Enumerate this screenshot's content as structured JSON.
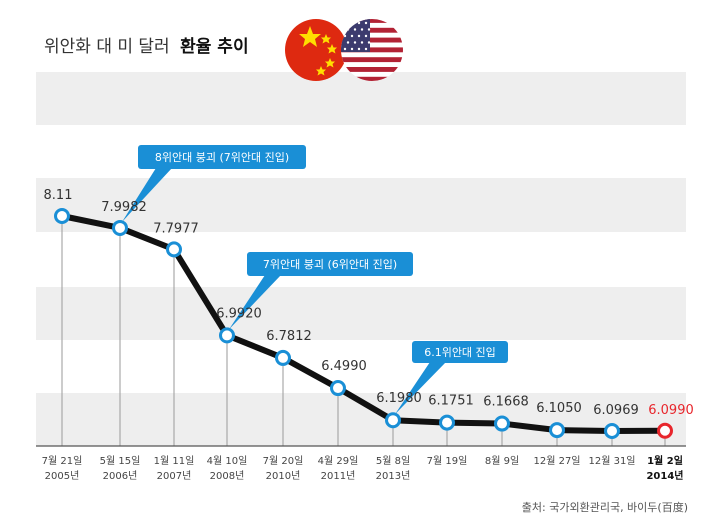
{
  "title": {
    "prefix": "위안화 대 미 달러",
    "bold": "환율 추이"
  },
  "source": "출처: 국가외환관리국, 바이두(百度)",
  "colors": {
    "line": "#111111",
    "marker": "#1a8fd6",
    "last_marker": "#e8262c",
    "callout": "#1a8fd6",
    "band": "#eeeeee"
  },
  "chart_data": {
    "type": "line",
    "categories": [
      [
        "7월 21일",
        "2005년"
      ],
      [
        "5월 15일",
        "2006년"
      ],
      [
        "1월 11일",
        "2007년"
      ],
      [
        "4월 10일",
        "2008년"
      ],
      [
        "7월 20일",
        "2010년"
      ],
      [
        "4월 29일",
        "2011년"
      ],
      [
        "5월 8일",
        "2013년"
      ],
      [
        "7월 19일",
        ""
      ],
      [
        "8월 9일",
        ""
      ],
      [
        "12월 27일",
        ""
      ],
      [
        "12월 31일",
        ""
      ],
      [
        "1월 2일",
        "2014년"
      ]
    ],
    "values": [
      8.11,
      7.9982,
      7.7977,
      6.992,
      6.7812,
      6.499,
      6.198,
      6.1751,
      6.1668,
      6.105,
      6.0969,
      6.099
    ],
    "value_labels": [
      "8.11",
      "7.9982",
      "7.7977",
      "6.9920",
      "6.7812",
      "6.4990",
      "6.1980",
      "6.1751",
      "6.1668",
      "6.1050",
      "6.0969",
      "6.0990"
    ],
    "highlight_last": true,
    "annotations": [
      {
        "text": "8위안대 붕괴 (7위안대 진입)",
        "point_index": 1
      },
      {
        "text": "7위안대 붕괴 (6위안대 진입)",
        "point_index": 3
      },
      {
        "text": "6.1위안대 진입",
        "point_index": 6
      }
    ],
    "grid": "horizontal bands",
    "legend": "none"
  }
}
